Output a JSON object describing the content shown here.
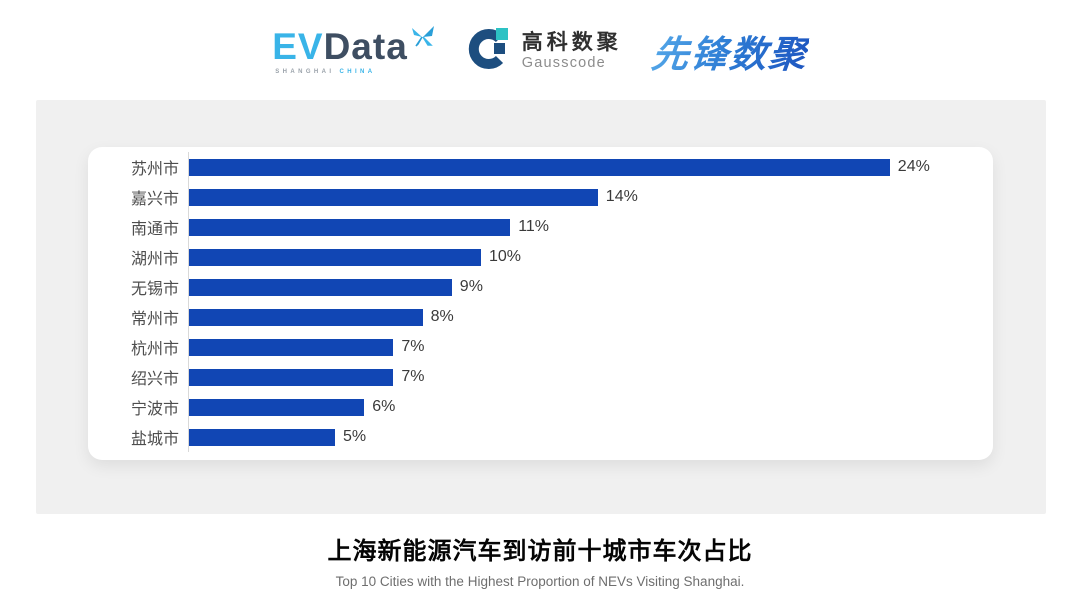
{
  "header": {
    "evdata": {
      "ev": "EV",
      "data": "Data",
      "sub_left": "SHANGHAI ",
      "sub_right": "CHINA",
      "ev_color": "#39b4e8",
      "data_color": "#3e4e62"
    },
    "gausscode": {
      "cn": "高科数聚",
      "en": "Gausscode",
      "ring_color": "#1d4e7f",
      "teal_color": "#2cc2c4"
    },
    "pioneer": {
      "text": "先锋数聚",
      "gradient_start": "#56a9e9",
      "gradient_end": "#1d55c0"
    }
  },
  "chart_data": {
    "type": "bar",
    "orientation": "horizontal",
    "categories": [
      "苏州市",
      "嘉兴市",
      "南通市",
      "湖州市",
      "无锡市",
      "常州市",
      "杭州市",
      "绍兴市",
      "宁波市",
      "盐城市"
    ],
    "values": [
      24,
      14,
      11,
      10,
      9,
      8,
      7,
      7,
      6,
      5
    ],
    "value_suffix": "%",
    "xlim": [
      0,
      25
    ],
    "grid": false,
    "legend": false,
    "bar_color": "#1146b4",
    "axis_line_color": "#d9d9d9",
    "title": "上海新能源汽车到访前十城市车次占比",
    "subtitle": "Top 10 Cities with the Highest Proportion of  NEVs Visiting Shanghai.",
    "xlabel": "",
    "ylabel": ""
  }
}
